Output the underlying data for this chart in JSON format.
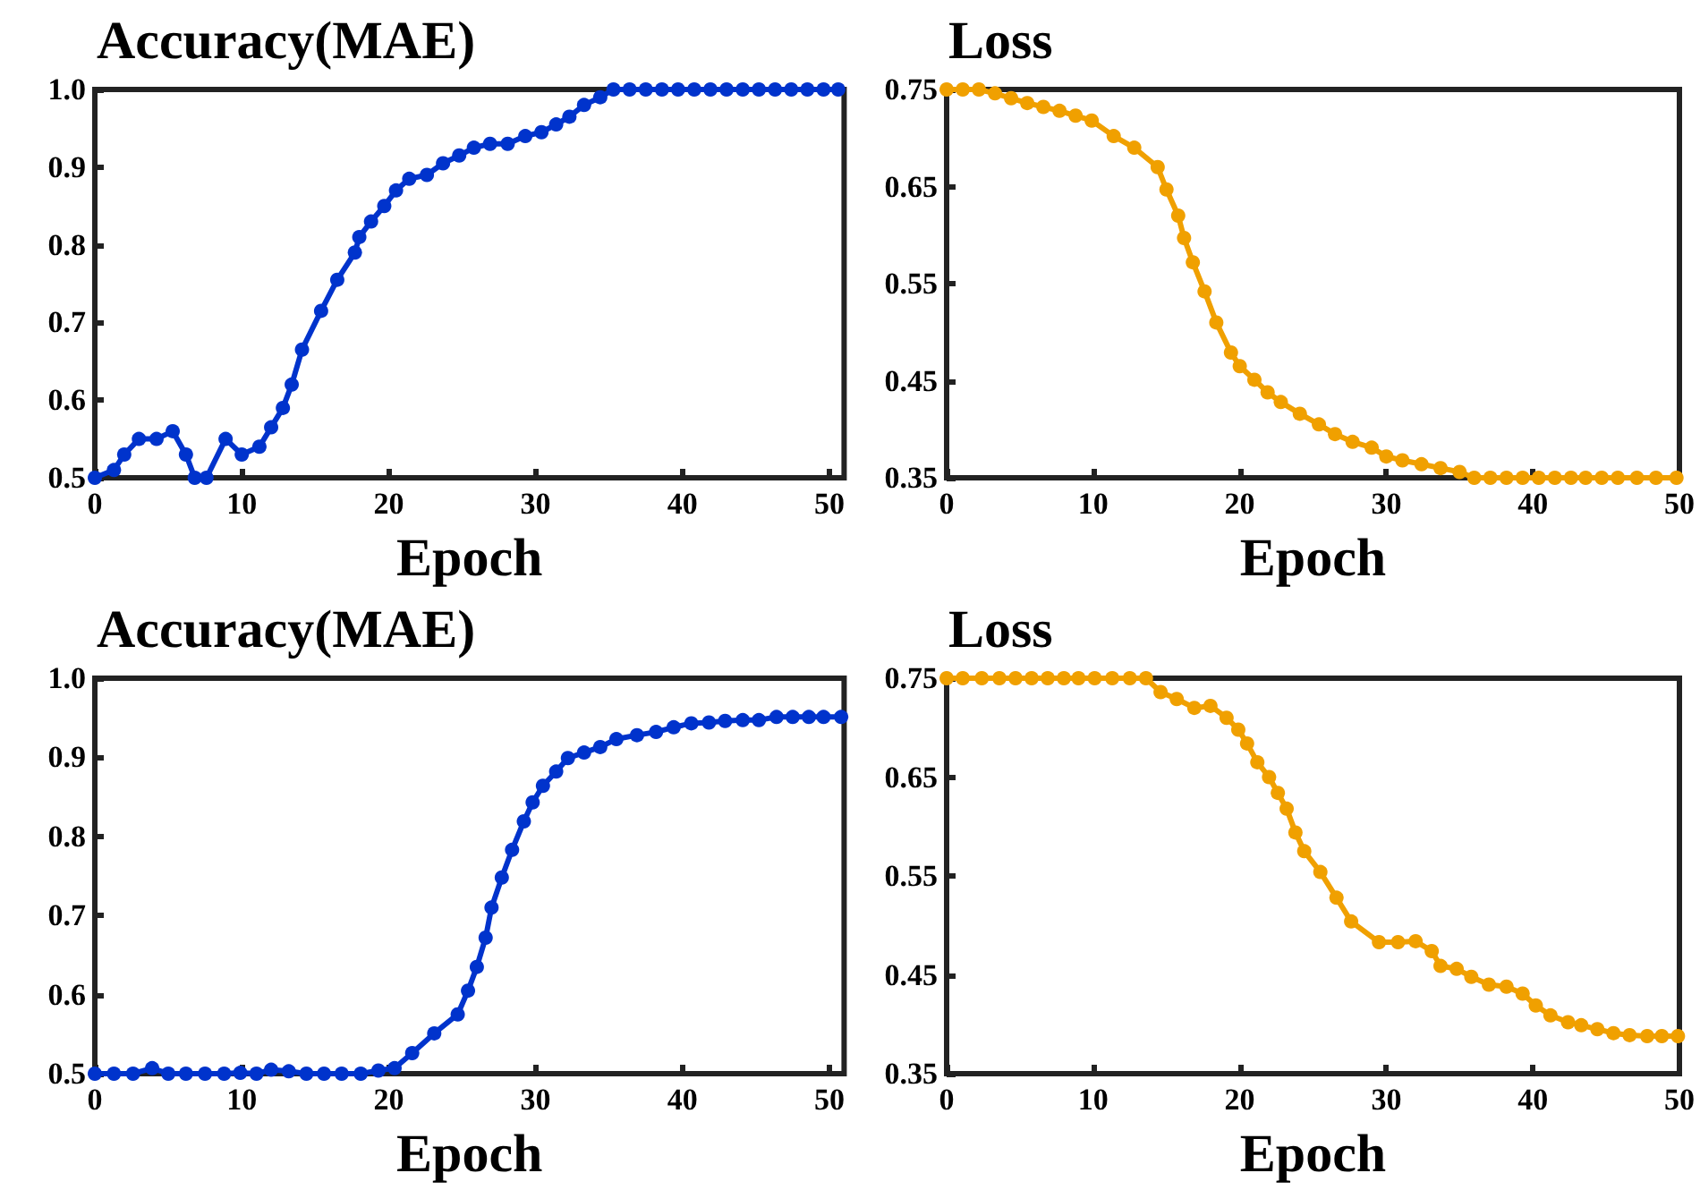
{
  "chart_data": [
    {
      "type": "line",
      "title": "Accuracy(MAE)",
      "xlabel": "Epoch",
      "marker": "circle",
      "xlim": [
        0,
        51
      ],
      "xticks": [
        0,
        10,
        20,
        30,
        40,
        50
      ],
      "ylim": [
        0.5,
        1.0
      ],
      "yticks": [
        0.5,
        0.6,
        0.7,
        0.8,
        0.9,
        {
          "value": 1.0,
          "label": "1.0"
        }
      ],
      "x": [
        0,
        1.3,
        2.0,
        3.0,
        4.2,
        5.3,
        6.2,
        6.8,
        7.6,
        8.9,
        10,
        11.2,
        12,
        12.8,
        13.4,
        14.1,
        15.4,
        16.5,
        17.7,
        18.0,
        18.8,
        19.7,
        20.5,
        21.4,
        22.6,
        23.7,
        24.8,
        25.8,
        26.9,
        28.1,
        29.3,
        30.4,
        31.4,
        32.3,
        33.3,
        34.4,
        35.3,
        36.4,
        37.5,
        38.6,
        39.7,
        40.8,
        41.9,
        43.0,
        44.1,
        45.2,
        46.3,
        47.4,
        48.5,
        49.6,
        50.6
      ],
      "series": [
        {
          "color": "#0033cc",
          "values": [
            0.5,
            0.51,
            0.53,
            0.55,
            0.55,
            0.56,
            0.53,
            0.5,
            0.5,
            0.55,
            0.53,
            0.54,
            0.565,
            0.59,
            0.62,
            0.665,
            0.715,
            0.755,
            0.79,
            0.81,
            0.83,
            0.85,
            0.87,
            0.885,
            0.89,
            0.905,
            0.915,
            0.925,
            0.93,
            0.93,
            0.94,
            0.945,
            0.955,
            0.965,
            0.98,
            0.99,
            1.0,
            1.0,
            1.0,
            1.0,
            1.0,
            1.0,
            1.0,
            1.0,
            1.0,
            1.0,
            1.0,
            1.0,
            1.0,
            1.0,
            1.0
          ]
        }
      ]
    },
    {
      "type": "line",
      "title": "Loss",
      "xlabel": "Epoch",
      "marker": "circle",
      "xlim": [
        0,
        50
      ],
      "xticks": [
        0,
        10,
        20,
        30,
        40,
        50
      ],
      "ylim": [
        0.35,
        0.75
      ],
      "yticks": [
        0.35,
        0.45,
        0.55,
        0.65,
        0.75
      ],
      "x": [
        0,
        1.1,
        2.2,
        3.3,
        4.4,
        5.5,
        6.6,
        7.7,
        8.8,
        9.9,
        11.4,
        12.8,
        14.4,
        15.0,
        15.8,
        16.2,
        16.8,
        17.6,
        18.4,
        19.4,
        20.0,
        21.0,
        21.9,
        22.8,
        24.1,
        25.4,
        26.5,
        27.7,
        29.0,
        30.0,
        31.1,
        32.4,
        33.7,
        35.0,
        36.0,
        37.1,
        38.2,
        39.3,
        40.4,
        41.5,
        42.6,
        43.6,
        44.7,
        45.8,
        47.1,
        48.4,
        49.8
      ],
      "series": [
        {
          "color": "#f0a000",
          "values": [
            0.75,
            0.75,
            0.75,
            0.746,
            0.741,
            0.736,
            0.732,
            0.728,
            0.723,
            0.718,
            0.702,
            0.69,
            0.67,
            0.647,
            0.62,
            0.597,
            0.572,
            0.542,
            0.51,
            0.479,
            0.465,
            0.451,
            0.438,
            0.428,
            0.416,
            0.405,
            0.395,
            0.387,
            0.381,
            0.372,
            0.368,
            0.364,
            0.36,
            0.356,
            0.35,
            0.35,
            0.35,
            0.35,
            0.35,
            0.35,
            0.35,
            0.35,
            0.35,
            0.35,
            0.35,
            0.35,
            0.35
          ]
        }
      ]
    },
    {
      "type": "line",
      "title": "Accuracy(MAE)",
      "xlabel": "Epoch",
      "marker": "circle",
      "xlim": [
        0,
        51
      ],
      "xticks": [
        0,
        10,
        20,
        30,
        40,
        50
      ],
      "ylim": [
        0.5,
        1.0
      ],
      "yticks": [
        0.5,
        0.6,
        0.7,
        0.8,
        0.9,
        {
          "value": 1.0,
          "label": "1.0"
        }
      ],
      "x": [
        0,
        1.3,
        2.6,
        3.9,
        5.0,
        6.2,
        7.5,
        8.8,
        9.9,
        11.0,
        12.0,
        13.2,
        14.4,
        15.6,
        16.8,
        18.1,
        19.3,
        20.4,
        21.6,
        23.1,
        24.7,
        25.4,
        26.0,
        26.6,
        27.0,
        27.7,
        28.4,
        29.2,
        29.8,
        30.5,
        31.4,
        32.2,
        33.3,
        34.4,
        35.5,
        36.9,
        38.2,
        39.4,
        40.6,
        41.8,
        42.9,
        44.1,
        45.2,
        46.4,
        47.5,
        48.6,
        49.6,
        50.8
      ],
      "series": [
        {
          "color": "#0033cc",
          "values": [
            0.5,
            0.5,
            0.5,
            0.507,
            0.5,
            0.5,
            0.5,
            0.5,
            0.501,
            0.5,
            0.505,
            0.503,
            0.5,
            0.5,
            0.5,
            0.5,
            0.504,
            0.507,
            0.526,
            0.551,
            0.575,
            0.605,
            0.635,
            0.672,
            0.71,
            0.748,
            0.783,
            0.819,
            0.843,
            0.864,
            0.882,
            0.899,
            0.906,
            0.913,
            0.923,
            0.928,
            0.932,
            0.938,
            0.943,
            0.944,
            0.946,
            0.947,
            0.947,
            0.951,
            0.951,
            0.951,
            0.951,
            0.951
          ]
        }
      ]
    },
    {
      "type": "line",
      "title": "Loss",
      "xlabel": "Epoch",
      "marker": "circle",
      "xlim": [
        0,
        50
      ],
      "xticks": [
        0,
        10,
        20,
        30,
        40,
        50
      ],
      "ylim": [
        0.35,
        0.75
      ],
      "yticks": [
        0.35,
        0.45,
        0.55,
        0.65,
        0.75
      ],
      "x": [
        0,
        1.1,
        2.4,
        3.6,
        4.7,
        5.8,
        6.9,
        8.0,
        9.0,
        10.1,
        11.3,
        12.5,
        13.6,
        14.6,
        15.7,
        16.9,
        18.0,
        19.1,
        19.9,
        20.5,
        21.2,
        22.0,
        22.6,
        23.2,
        23.8,
        24.4,
        25.5,
        26.6,
        27.6,
        29.5,
        30.8,
        32.0,
        33.1,
        33.7,
        34.8,
        35.8,
        37.0,
        38.2,
        39.3,
        40.2,
        41.2,
        42.4,
        43.3,
        44.4,
        45.5,
        46.6,
        47.8,
        48.8,
        49.9
      ],
      "series": [
        {
          "color": "#f0a000",
          "values": [
            0.75,
            0.75,
            0.75,
            0.75,
            0.75,
            0.75,
            0.75,
            0.75,
            0.75,
            0.75,
            0.75,
            0.75,
            0.75,
            0.736,
            0.729,
            0.72,
            0.722,
            0.71,
            0.698,
            0.684,
            0.665,
            0.65,
            0.634,
            0.618,
            0.594,
            0.575,
            0.554,
            0.528,
            0.504,
            0.483,
            0.483,
            0.484,
            0.474,
            0.459,
            0.456,
            0.448,
            0.44,
            0.438,
            0.431,
            0.419,
            0.409,
            0.402,
            0.399,
            0.395,
            0.391,
            0.389,
            0.388,
            0.388,
            0.388
          ]
        }
      ]
    }
  ]
}
